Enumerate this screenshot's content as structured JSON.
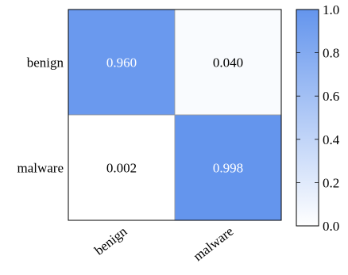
{
  "chart_data": {
    "type": "heatmap",
    "title": "",
    "xlabel": "",
    "ylabel": "",
    "x_categories": [
      "benign",
      "malware"
    ],
    "y_categories": [
      "benign",
      "malware"
    ],
    "values": [
      [
        0.96,
        0.04
      ],
      [
        0.002,
        0.998
      ]
    ],
    "value_labels": [
      [
        "0.960",
        "0.040"
      ],
      [
        "0.002",
        "0.998"
      ]
    ],
    "colorbar": {
      "range": [
        0.0,
        1.0
      ],
      "ticks": [
        0.0,
        0.2,
        0.4,
        0.6,
        0.8,
        1.0
      ],
      "tick_labels": [
        "0.0",
        "0.2",
        "0.4",
        "0.6",
        "0.8",
        "1.0"
      ],
      "color_low": "#ffffff",
      "color_high": "#6495ed"
    },
    "grid": false,
    "legend": "colorbar right"
  }
}
